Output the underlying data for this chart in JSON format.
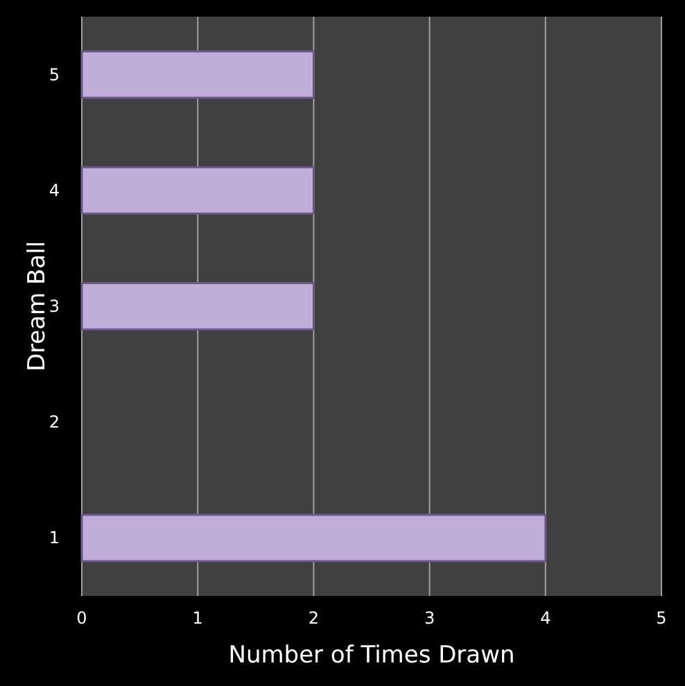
{
  "chart_data": {
    "type": "bar",
    "orientation": "horizontal",
    "xlabel": "Number of Times Drawn",
    "ylabel": "Dream Ball",
    "categories": [
      "5",
      "4",
      "3",
      "2",
      "1"
    ],
    "values": [
      2,
      2,
      2,
      0,
      4
    ],
    "color": "#c0aed8",
    "xlim": [
      0,
      5
    ],
    "xticks": [
      0,
      1,
      2,
      3,
      4,
      5
    ],
    "grid": "x"
  }
}
